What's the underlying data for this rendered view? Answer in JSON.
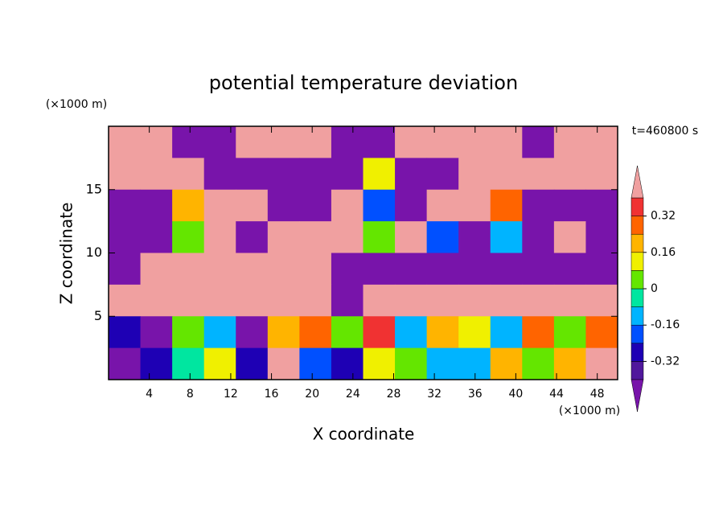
{
  "chart_data": {
    "type": "contourf",
    "title": "potential temperature deviation",
    "annotation": "t=460800 s",
    "x_label": "X coordinate",
    "y_label": "Z coordinate",
    "x_unit": "(×1000 m)",
    "y_unit": "(×1000 m)",
    "xlim": [
      0,
      50
    ],
    "ylim": [
      0,
      20
    ],
    "xticks": [
      4,
      8,
      12,
      16,
      20,
      24,
      28,
      32,
      36,
      40,
      44,
      48
    ],
    "yticks": [
      5,
      10,
      15
    ],
    "x": [
      1.5625,
      4.6875,
      7.8125,
      10.9375,
      14.0625,
      17.1875,
      20.3125,
      23.4375,
      26.5625,
      29.6875,
      32.8125,
      35.9375,
      39.0625,
      42.1875,
      45.3125,
      48.4375
    ],
    "y": [
      18.75,
      16.25,
      13.75,
      11.25,
      8.75,
      6.25,
      3.75,
      1.25
    ],
    "z": [
      [
        0.5,
        0.5,
        -0.5,
        -0.5,
        0.5,
        0.5,
        0.5,
        -0.5,
        -0.5,
        0.5,
        0.5,
        0.5,
        0.5,
        -0.5,
        0.5,
        0.5
      ],
      [
        0.5,
        0.5,
        0.5,
        -0.5,
        -0.5,
        -0.5,
        -0.5,
        -0.5,
        0.1,
        -0.5,
        -0.5,
        0.5,
        0.5,
        0.5,
        0.5,
        0.5
      ],
      [
        -0.5,
        -0.5,
        0.2,
        0.5,
        0.5,
        -0.5,
        -0.5,
        0.5,
        -0.2,
        -0.5,
        0.5,
        0.5,
        0.3,
        -0.5,
        -0.5,
        -0.5
      ],
      [
        -0.5,
        -0.5,
        0.0,
        0.5,
        -0.5,
        0.5,
        0.5,
        0.5,
        0.0,
        0.5,
        -0.2,
        -0.5,
        -0.1,
        -0.5,
        0.5,
        -0.5
      ],
      [
        -0.5,
        0.5,
        0.5,
        0.5,
        0.5,
        0.5,
        0.5,
        -0.5,
        -0.5,
        -0.5,
        -0.5,
        -0.5,
        -0.5,
        -0.5,
        -0.5,
        -0.5
      ],
      [
        0.5,
        0.5,
        0.5,
        0.5,
        0.5,
        0.5,
        0.5,
        -0.5,
        0.5,
        0.5,
        0.5,
        0.5,
        0.5,
        0.5,
        0.5,
        0.5
      ],
      [
        -0.3,
        -0.45,
        0.0,
        -0.1,
        -0.5,
        0.2,
        0.3,
        0.0,
        0.35,
        -0.1,
        0.2,
        0.1,
        -0.15,
        0.3,
        0.05,
        0.3
      ],
      [
        -0.45,
        -0.3,
        -0.05,
        0.1,
        -0.3,
        0.4,
        -0.2,
        -0.25,
        0.1,
        0.05,
        -0.1,
        -0.15,
        0.2,
        0.0,
        0.2,
        0.5
      ]
    ],
    "levels": [
      -0.4,
      -0.32,
      -0.24,
      -0.16,
      -0.08,
      0,
      0.08,
      0.16,
      0.24,
      0.32,
      0.4
    ],
    "colors": [
      "#7814aa",
      "#50189c",
      "#1e00b4",
      "#0050ff",
      "#00b4ff",
      "#00e6a0",
      "#64e600",
      "#f0f000",
      "#ffb400",
      "#ff6400",
      "#f03232",
      "#f0a0a0"
    ],
    "colorbar_ticks": [
      0.32,
      0.16,
      0,
      -0.16,
      -0.32
    ]
  }
}
